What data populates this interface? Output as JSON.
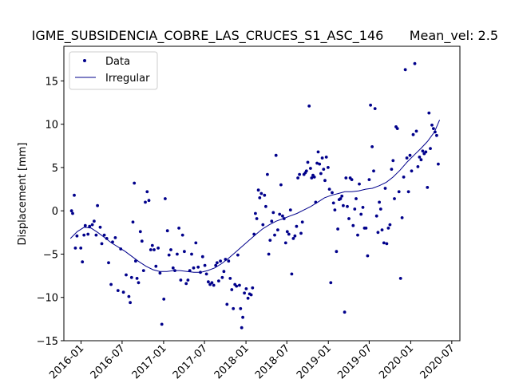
{
  "chart_data": {
    "type": "scatter",
    "title": "IGME_SUBSIDENCIA_COBRE_LAS_CRUCES_S1_ASC_146",
    "title_right": "Mean_vel: 2.5",
    "xlabel": "",
    "ylabel": "Displacement [mm]",
    "xlim": [
      "2015-10-17",
      "2020-08-06"
    ],
    "ylim": [
      -15,
      19
    ],
    "yticks": [
      -15,
      -10,
      -5,
      0,
      5,
      10,
      15
    ],
    "xticks": [
      "2016-01",
      "2016-07",
      "2017-01",
      "2017-07",
      "2018-01",
      "2018-07",
      "2019-01",
      "2019-07",
      "2020-01",
      "2020-07"
    ],
    "grid": false,
    "legend": {
      "position": "top-left",
      "entries": [
        "Data",
        "Irregular"
      ]
    },
    "colors": {
      "series": "#00008b"
    },
    "series": [
      {
        "name": "Data",
        "style": "points",
        "points": [
          [
            "2015-11-20",
            0.0
          ],
          [
            "2015-11-25",
            -0.3
          ],
          [
            "2015-12-02",
            1.8
          ],
          [
            "2015-12-07",
            -4.3
          ],
          [
            "2015-12-14",
            -2.9
          ],
          [
            "2015-12-31",
            -4.3
          ],
          [
            "2016-01-07",
            -5.9
          ],
          [
            "2016-01-14",
            -2.8
          ],
          [
            "2016-01-20",
            -1.7
          ],
          [
            "2016-02-01",
            -2.7
          ],
          [
            "2016-02-08",
            -1.8
          ],
          [
            "2016-02-20",
            -1.6
          ],
          [
            "2016-02-28",
            -1.2
          ],
          [
            "2016-03-08",
            -2.8
          ],
          [
            "2016-03-14",
            0.6
          ],
          [
            "2016-03-26",
            -1.9
          ],
          [
            "2016-04-02",
            -3.8
          ],
          [
            "2016-04-13",
            -2.8
          ],
          [
            "2016-04-24",
            -3.2
          ],
          [
            "2016-05-02",
            -6.0
          ],
          [
            "2016-05-13",
            -8.5
          ],
          [
            "2016-05-20",
            -3.6
          ],
          [
            "2016-06-01",
            -3.1
          ],
          [
            "2016-06-13",
            -9.2
          ],
          [
            "2016-06-25",
            -4.4
          ],
          [
            "2016-07-07",
            -9.4
          ],
          [
            "2016-07-19",
            -7.4
          ],
          [
            "2016-07-31",
            -9.9
          ],
          [
            "2016-08-06",
            -10.6
          ],
          [
            "2016-08-12",
            -7.7
          ],
          [
            "2016-08-18",
            -1.3
          ],
          [
            "2016-08-24",
            3.2
          ],
          [
            "2016-08-30",
            -5.8
          ],
          [
            "2016-09-05",
            -7.8
          ],
          [
            "2016-09-12",
            -8.3
          ],
          [
            "2016-09-20",
            -2.4
          ],
          [
            "2016-09-27",
            -3.5
          ],
          [
            "2016-10-04",
            -6.9
          ],
          [
            "2016-10-12",
            1.0
          ],
          [
            "2016-10-20",
            2.2
          ],
          [
            "2016-10-28",
            1.2
          ],
          [
            "2016-11-05",
            -4.5
          ],
          [
            "2016-11-12",
            -4.0
          ],
          [
            "2016-11-20",
            -4.5
          ],
          [
            "2016-11-28",
            -6.4
          ],
          [
            "2016-12-08",
            -4.3
          ],
          [
            "2016-12-16",
            -7.2
          ],
          [
            "2016-12-24",
            -13.1
          ],
          [
            "2017-01-02",
            -10.2
          ],
          [
            "2017-01-08",
            1.4
          ],
          [
            "2017-01-18",
            -2.3
          ],
          [
            "2017-01-25",
            -5.1
          ],
          [
            "2017-02-02",
            -4.5
          ],
          [
            "2017-02-12",
            -6.6
          ],
          [
            "2017-02-20",
            -6.9
          ],
          [
            "2017-03-02",
            -5.0
          ],
          [
            "2017-03-10",
            -2.0
          ],
          [
            "2017-03-18",
            -8.0
          ],
          [
            "2017-03-26",
            -2.8
          ],
          [
            "2017-04-03",
            -4.7
          ],
          [
            "2017-04-11",
            -8.4
          ],
          [
            "2017-04-19",
            -8.0
          ],
          [
            "2017-04-27",
            -6.9
          ],
          [
            "2017-05-05",
            -5.0
          ],
          [
            "2017-05-14",
            -6.6
          ],
          [
            "2017-05-24",
            -3.7
          ],
          [
            "2017-06-03",
            -6.5
          ],
          [
            "2017-06-13",
            -7.1
          ],
          [
            "2017-06-23",
            -5.3
          ],
          [
            "2017-07-03",
            -6.3
          ],
          [
            "2017-07-10",
            -7.3
          ],
          [
            "2017-07-18",
            -8.2
          ],
          [
            "2017-07-26",
            -8.5
          ],
          [
            "2017-08-03",
            -8.3
          ],
          [
            "2017-08-11",
            -8.6
          ],
          [
            "2017-08-20",
            -6.3
          ],
          [
            "2017-08-26",
            -6.0
          ],
          [
            "2017-09-02",
            -8.1
          ],
          [
            "2017-09-10",
            -5.8
          ],
          [
            "2017-09-18",
            -7.7
          ],
          [
            "2017-09-25",
            -7.0
          ],
          [
            "2017-10-02",
            -5.6
          ],
          [
            "2017-10-09",
            -10.8
          ],
          [
            "2017-10-16",
            -5.8
          ],
          [
            "2017-10-23",
            -7.8
          ],
          [
            "2017-10-30",
            -9.1
          ],
          [
            "2017-11-06",
            -11.3
          ],
          [
            "2017-11-13",
            -8.5
          ],
          [
            "2017-11-20",
            -8.7
          ],
          [
            "2017-11-26",
            -5.1
          ],
          [
            "2017-12-03",
            -8.6
          ],
          [
            "2017-12-08",
            -11.3
          ],
          [
            "2017-12-13",
            -13.5
          ],
          [
            "2017-12-18",
            -12.3
          ],
          [
            "2017-12-25",
            -9.5
          ],
          [
            "2018-01-02",
            -9.0
          ],
          [
            "2018-01-10",
            -10.1
          ],
          [
            "2018-01-17",
            -9.6
          ],
          [
            "2018-01-24",
            -9.7
          ],
          [
            "2018-01-30",
            -8.9
          ],
          [
            "2018-02-06",
            -2.7
          ],
          [
            "2018-02-12",
            -0.3
          ],
          [
            "2018-02-18",
            -0.9
          ],
          [
            "2018-02-25",
            2.4
          ],
          [
            "2018-03-03",
            1.5
          ],
          [
            "2018-03-10",
            2.0
          ],
          [
            "2018-03-17",
            -1.6
          ],
          [
            "2018-03-24",
            1.8
          ],
          [
            "2018-03-30",
            0.5
          ],
          [
            "2018-04-06",
            4.2
          ],
          [
            "2018-04-12",
            -5.0
          ],
          [
            "2018-04-18",
            -3.4
          ],
          [
            "2018-04-25",
            -1.2
          ],
          [
            "2018-05-02",
            -0.2
          ],
          [
            "2018-05-08",
            -2.8
          ],
          [
            "2018-05-14",
            6.4
          ],
          [
            "2018-05-22",
            -2.2
          ],
          [
            "2018-05-30",
            -0.4
          ],
          [
            "2018-06-05",
            3.0
          ],
          [
            "2018-06-12",
            -0.6
          ],
          [
            "2018-06-19",
            -0.9
          ],
          [
            "2018-06-26",
            -3.7
          ],
          [
            "2018-07-03",
            -2.4
          ],
          [
            "2018-07-10",
            -2.7
          ],
          [
            "2018-07-17",
            0.1
          ],
          [
            "2018-07-23",
            -7.3
          ],
          [
            "2018-07-30",
            -3.2
          ],
          [
            "2018-08-06",
            -2.9
          ],
          [
            "2018-08-13",
            -1.8
          ],
          [
            "2018-08-19",
            3.8
          ],
          [
            "2018-08-26",
            4.2
          ],
          [
            "2018-09-02",
            -2.6
          ],
          [
            "2018-09-08",
            -1.3
          ],
          [
            "2018-09-15",
            4.2
          ],
          [
            "2018-09-21",
            4.4
          ],
          [
            "2018-09-26",
            4.6
          ],
          [
            "2018-10-02",
            5.6
          ],
          [
            "2018-10-08",
            12.1
          ],
          [
            "2018-10-14",
            4.9
          ],
          [
            "2018-10-19",
            3.8
          ],
          [
            "2018-10-25",
            4.1
          ],
          [
            "2018-10-31",
            3.9
          ],
          [
            "2018-11-06",
            1.0
          ],
          [
            "2018-11-12",
            5.5
          ],
          [
            "2018-11-17",
            6.8
          ],
          [
            "2018-11-23",
            5.4
          ],
          [
            "2018-11-29",
            4.3
          ],
          [
            "2018-12-05",
            6.1
          ],
          [
            "2018-12-11",
            4.8
          ],
          [
            "2018-12-17",
            3.5
          ],
          [
            "2018-12-23",
            6.2
          ],
          [
            "2018-12-31",
            5.0
          ],
          [
            "2019-01-06",
            2.5
          ],
          [
            "2019-01-12",
            -8.3
          ],
          [
            "2019-01-18",
            2.1
          ],
          [
            "2019-01-24",
            0.9
          ],
          [
            "2019-01-30",
            0.1
          ],
          [
            "2019-02-06",
            -4.7
          ],
          [
            "2019-02-12",
            -2.1
          ],
          [
            "2019-02-18",
            1.3
          ],
          [
            "2019-02-24",
            1.4
          ],
          [
            "2019-03-02",
            1.7
          ],
          [
            "2019-03-08",
            0.6
          ],
          [
            "2019-03-14",
            -11.7
          ],
          [
            "2019-03-20",
            3.8
          ],
          [
            "2019-03-26",
            0.5
          ],
          [
            "2019-04-02",
            -0.9
          ],
          [
            "2019-04-08",
            3.8
          ],
          [
            "2019-04-15",
            3.6
          ],
          [
            "2019-04-21",
            -1.7
          ],
          [
            "2019-04-28",
            0.2
          ],
          [
            "2019-05-04",
            1.4
          ],
          [
            "2019-05-11",
            -2.8
          ],
          [
            "2019-05-18",
            3.1
          ],
          [
            "2019-05-26",
            -0.4
          ],
          [
            "2019-06-03",
            0.4
          ],
          [
            "2019-06-10",
            -2.0
          ],
          [
            "2019-06-17",
            -2.0
          ],
          [
            "2019-06-24",
            -5.2
          ],
          [
            "2019-07-01",
            3.6
          ],
          [
            "2019-07-07",
            12.2
          ],
          [
            "2019-07-14",
            7.4
          ],
          [
            "2019-07-21",
            4.6
          ],
          [
            "2019-07-27",
            11.8
          ],
          [
            "2019-08-03",
            -0.6
          ],
          [
            "2019-08-09",
            -2.5
          ],
          [
            "2019-08-15",
            1.0
          ],
          [
            "2019-08-21",
            0.2
          ],
          [
            "2019-08-27",
            -2.2
          ],
          [
            "2019-09-04",
            -3.7
          ],
          [
            "2019-09-10",
            2.6
          ],
          [
            "2019-09-17",
            -3.8
          ],
          [
            "2019-09-24",
            -2.0
          ],
          [
            "2019-10-01",
            -1.6
          ],
          [
            "2019-10-08",
            4.8
          ],
          [
            "2019-10-15",
            5.8
          ],
          [
            "2019-10-21",
            1.4
          ],
          [
            "2019-10-28",
            9.7
          ],
          [
            "2019-11-03",
            9.5
          ],
          [
            "2019-11-10",
            2.2
          ],
          [
            "2019-11-17",
            -7.8
          ],
          [
            "2019-11-24",
            -0.8
          ],
          [
            "2019-12-01",
            3.9
          ],
          [
            "2019-12-08",
            16.3
          ],
          [
            "2019-12-15",
            6.1
          ],
          [
            "2019-12-22",
            2.2
          ],
          [
            "2019-12-29",
            6.4
          ],
          [
            "2020-01-05",
            4.6
          ],
          [
            "2020-01-12",
            8.8
          ],
          [
            "2020-01-19",
            17.0
          ],
          [
            "2020-01-26",
            9.2
          ],
          [
            "2020-02-02",
            5.1
          ],
          [
            "2020-02-09",
            6.2
          ],
          [
            "2020-02-16",
            5.9
          ],
          [
            "2020-02-23",
            6.9
          ],
          [
            "2020-03-01",
            6.6
          ],
          [
            "2020-03-08",
            6.8
          ],
          [
            "2020-03-15",
            2.7
          ],
          [
            "2020-03-22",
            11.3
          ],
          [
            "2020-03-28",
            7.2
          ],
          [
            "2020-04-04",
            9.9
          ],
          [
            "2020-04-11",
            9.5
          ],
          [
            "2020-04-18",
            9.1
          ],
          [
            "2020-04-25",
            8.7
          ],
          [
            "2020-05-02",
            5.4
          ]
        ]
      },
      {
        "name": "Irregular",
        "style": "line",
        "points": [
          [
            "2015-11-15",
            -3.2
          ],
          [
            "2015-12-15",
            -2.4
          ],
          [
            "2016-01-15",
            -1.9
          ],
          [
            "2016-02-15",
            -2.0
          ],
          [
            "2016-03-15",
            -2.5
          ],
          [
            "2016-04-15",
            -3.1
          ],
          [
            "2016-05-15",
            -3.7
          ],
          [
            "2016-06-15",
            -4.2
          ],
          [
            "2016-07-15",
            -4.7
          ],
          [
            "2016-08-15",
            -5.3
          ],
          [
            "2016-09-15",
            -5.9
          ],
          [
            "2016-10-15",
            -6.4
          ],
          [
            "2016-11-15",
            -6.8
          ],
          [
            "2016-12-15",
            -7.0
          ],
          [
            "2017-01-15",
            -7.0
          ],
          [
            "2017-02-15",
            -6.9
          ],
          [
            "2017-03-15",
            -6.9
          ],
          [
            "2017-04-15",
            -7.0
          ],
          [
            "2017-05-15",
            -7.1
          ],
          [
            "2017-06-15",
            -7.1
          ],
          [
            "2017-07-15",
            -6.9
          ],
          [
            "2017-08-15",
            -6.6
          ],
          [
            "2017-09-15",
            -6.1
          ],
          [
            "2017-10-15",
            -5.5
          ],
          [
            "2017-11-15",
            -4.8
          ],
          [
            "2017-12-15",
            -4.1
          ],
          [
            "2018-01-15",
            -3.4
          ],
          [
            "2018-02-15",
            -2.7
          ],
          [
            "2018-03-15",
            -2.1
          ],
          [
            "2018-04-15",
            -1.6
          ],
          [
            "2018-05-15",
            -1.2
          ],
          [
            "2018-06-15",
            -0.9
          ],
          [
            "2018-07-15",
            -0.6
          ],
          [
            "2018-08-15",
            -0.3
          ],
          [
            "2018-09-15",
            0.1
          ],
          [
            "2018-10-15",
            0.5
          ],
          [
            "2018-11-15",
            1.0
          ],
          [
            "2018-12-15",
            1.5
          ],
          [
            "2019-01-15",
            1.8
          ],
          [
            "2019-02-15",
            2.0
          ],
          [
            "2019-03-15",
            2.2
          ],
          [
            "2019-04-15",
            2.2
          ],
          [
            "2019-05-15",
            2.3
          ],
          [
            "2019-06-15",
            2.5
          ],
          [
            "2019-07-15",
            2.6
          ],
          [
            "2019-08-15",
            2.9
          ],
          [
            "2019-09-15",
            3.3
          ],
          [
            "2019-10-15",
            3.9
          ],
          [
            "2019-11-15",
            4.7
          ],
          [
            "2019-12-15",
            5.6
          ],
          [
            "2020-01-15",
            6.4
          ],
          [
            "2020-02-15",
            7.2
          ],
          [
            "2020-03-15",
            8.0
          ],
          [
            "2020-04-15",
            9.1
          ],
          [
            "2020-05-08",
            10.5
          ]
        ]
      }
    ]
  }
}
